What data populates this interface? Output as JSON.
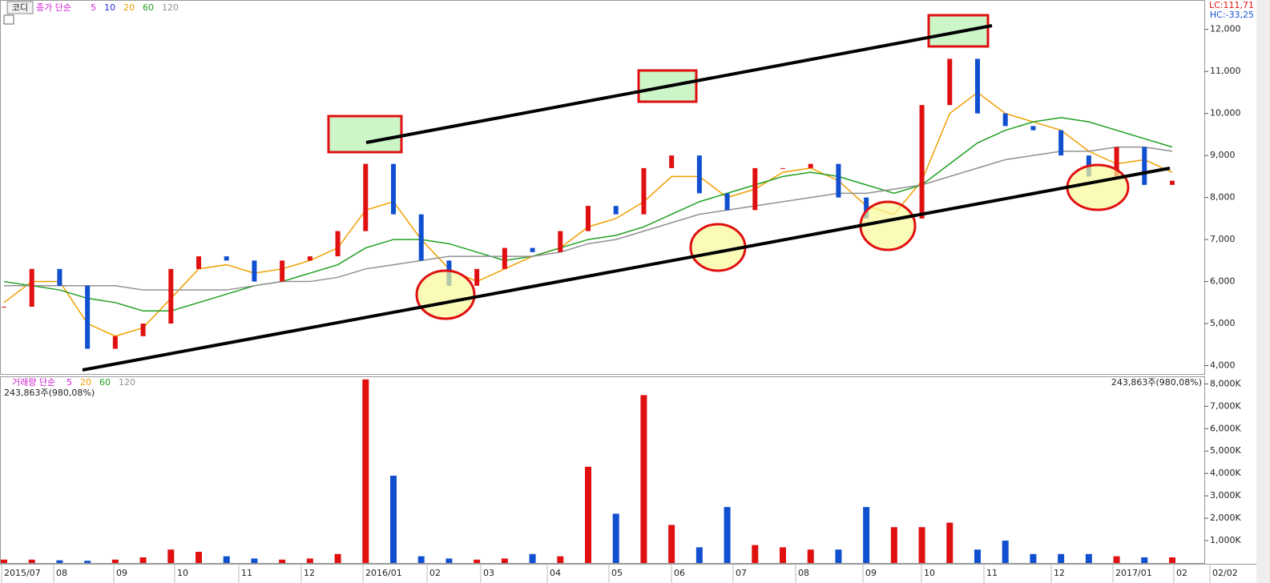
{
  "chart_data": [
    {
      "type": "price",
      "code_label": "코디",
      "legend_title": "종가 단순",
      "legend": [
        {
          "label": "5",
          "color": "#d020d0"
        },
        {
          "label": "10",
          "color": "#2030d0"
        },
        {
          "label": "20",
          "color": "#f0a000"
        },
        {
          "label": "60",
          "color": "#20a020"
        },
        {
          "label": "120",
          "color": "#909090"
        }
      ],
      "lc": "LC:111,71",
      "hc": "HC:-33,25",
      "up_color": "#e01010",
      "down_color": "#1050d0",
      "values": [
        5400,
        6300,
        5900,
        4400,
        4700,
        5000,
        6300,
        6600,
        6500,
        6000,
        6500,
        6600,
        7200,
        8800,
        7600,
        6500,
        5900,
        6300,
        6800,
        6700,
        7200,
        7800,
        7600,
        8700,
        9000,
        8100,
        7700,
        8700,
        8700,
        8800,
        8000,
        7500,
        7500,
        10200,
        11300,
        10000,
        9700,
        9600,
        9000,
        8500,
        9200,
        8300,
        8400
      ],
      "series": [
        {
          "color": "#f0a000",
          "values": [
            5500,
            6000,
            6000,
            5000,
            4700,
            4900,
            5600,
            6300,
            6400,
            6200,
            6300,
            6500,
            6800,
            7700,
            7900,
            7000,
            6300,
            6000,
            6300,
            6600,
            6800,
            7300,
            7500,
            7900,
            8500,
            8500,
            8000,
            8200,
            8600,
            8700,
            8400,
            7800,
            7600,
            8400,
            10000,
            10500,
            10000,
            9800,
            9600,
            9100,
            8800,
            8900,
            8600
          ]
        },
        {
          "color": "#20a020",
          "values": [
            6000,
            5900,
            5800,
            5600,
            5500,
            5300,
            5300,
            5500,
            5700,
            5900,
            6000,
            6200,
            6400,
            6800,
            7000,
            7000,
            6900,
            6700,
            6500,
            6600,
            6800,
            7000,
            7100,
            7300,
            7600,
            7900,
            8100,
            8300,
            8500,
            8600,
            8500,
            8300,
            8100,
            8300,
            8800,
            9300,
            9600,
            9800,
            9900,
            9800,
            9600,
            9400,
            9200
          ]
        },
        {
          "color": "#909090",
          "values": [
            5900,
            5900,
            5900,
            5900,
            5900,
            5800,
            5800,
            5800,
            5800,
            5900,
            6000,
            6000,
            6100,
            6300,
            6400,
            6500,
            6600,
            6600,
            6600,
            6600,
            6700,
            6900,
            7000,
            7200,
            7400,
            7600,
            7700,
            7800,
            7900,
            8000,
            8100,
            8100,
            8200,
            8300,
            8500,
            8700,
            8900,
            9000,
            9100,
            9100,
            9200,
            9200,
            9100
          ]
        }
      ],
      "ylim": [
        3800,
        12700
      ],
      "yticks": [
        {
          "value": 4000,
          "label": "4,000"
        },
        {
          "value": 5000,
          "label": "5,000"
        },
        {
          "value": 6000,
          "label": "6,000"
        },
        {
          "value": 7000,
          "label": "7,000"
        },
        {
          "value": 8000,
          "label": "8,000"
        },
        {
          "value": 9000,
          "label": "9,000"
        },
        {
          "value": 10000,
          "label": "10,000"
        },
        {
          "value": 11000,
          "label": "11,000"
        },
        {
          "value": 12000,
          "label": "12,000"
        }
      ]
    },
    {
      "type": "volume",
      "legend_title": "거래량 단순",
      "legend": [
        {
          "label": "5",
          "color": "#d020d0"
        },
        {
          "label": "20",
          "color": "#f0a000"
        },
        {
          "label": "60",
          "color": "#20a020"
        },
        {
          "label": "120",
          "color": "#909090"
        }
      ],
      "info_left": "243,863주(980,08%)",
      "info_right": "243,863주(980,08%)",
      "values": [
        150,
        150,
        120,
        100,
        150,
        250,
        600,
        500,
        300,
        200,
        150,
        200,
        400,
        8200,
        3900,
        300,
        200,
        150,
        200,
        400,
        300,
        4300,
        2200,
        7500,
        1700,
        700,
        2500,
        800,
        700,
        600,
        600,
        2500,
        1600,
        1600,
        1800,
        600,
        1000,
        400,
        400,
        400,
        300,
        250,
        250
      ],
      "ylim": [
        0,
        8300
      ],
      "yticks": [
        {
          "value": 1000,
          "label": "1,000K"
        },
        {
          "value": 2000,
          "label": "2,000K"
        },
        {
          "value": 3000,
          "label": "3,000K"
        },
        {
          "value": 4000,
          "label": "4,000K"
        },
        {
          "value": 5000,
          "label": "5,000K"
        },
        {
          "value": 6000,
          "label": "6,000K"
        },
        {
          "value": 7000,
          "label": "7,000K"
        },
        {
          "value": 8000,
          "label": "8,000K"
        }
      ],
      "x_labels": [
        "2015/07",
        "08",
        "09",
        "10",
        "11",
        "12",
        "2016/01",
        "02",
        "03",
        "04",
        "05",
        "06",
        "07",
        "08",
        "09",
        "10",
        "11",
        "12",
        "2017/01",
        "02",
        "02/02"
      ]
    }
  ]
}
